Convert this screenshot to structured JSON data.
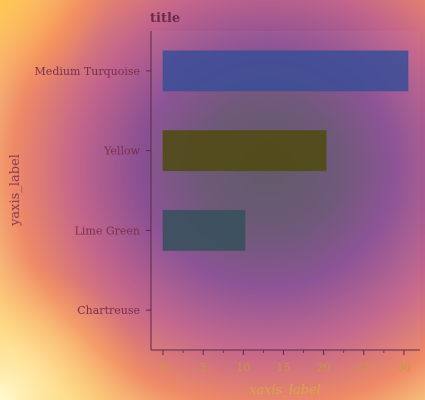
{
  "chart_data": {
    "type": "bar",
    "orientation": "horizontal",
    "title": "title",
    "xlabel": "xaxis_label",
    "ylabel": "yaxis_label",
    "categories": [
      "Medium Turquoise",
      "Yellow",
      "Lime Green",
      "Chartreuse"
    ],
    "values": [
      30.5,
      20.3,
      10.2,
      0
    ],
    "bar_colors": [
      "#3a4e96",
      "#4f4a0f",
      "#35505a",
      "#7fff00"
    ],
    "xlim": [
      -1.5,
      32
    ],
    "xticks": [
      0,
      5,
      10,
      15,
      20,
      25,
      30
    ],
    "grid": false,
    "colors": {
      "title": "#6b2a4a",
      "ytick_text": "#7a2e4e",
      "ylabel_text": "#8a3a5a",
      "xtick_text": "#c59a3a",
      "xlabel_text": "#d4a64a",
      "axis_line": "#5a2a4a"
    }
  }
}
